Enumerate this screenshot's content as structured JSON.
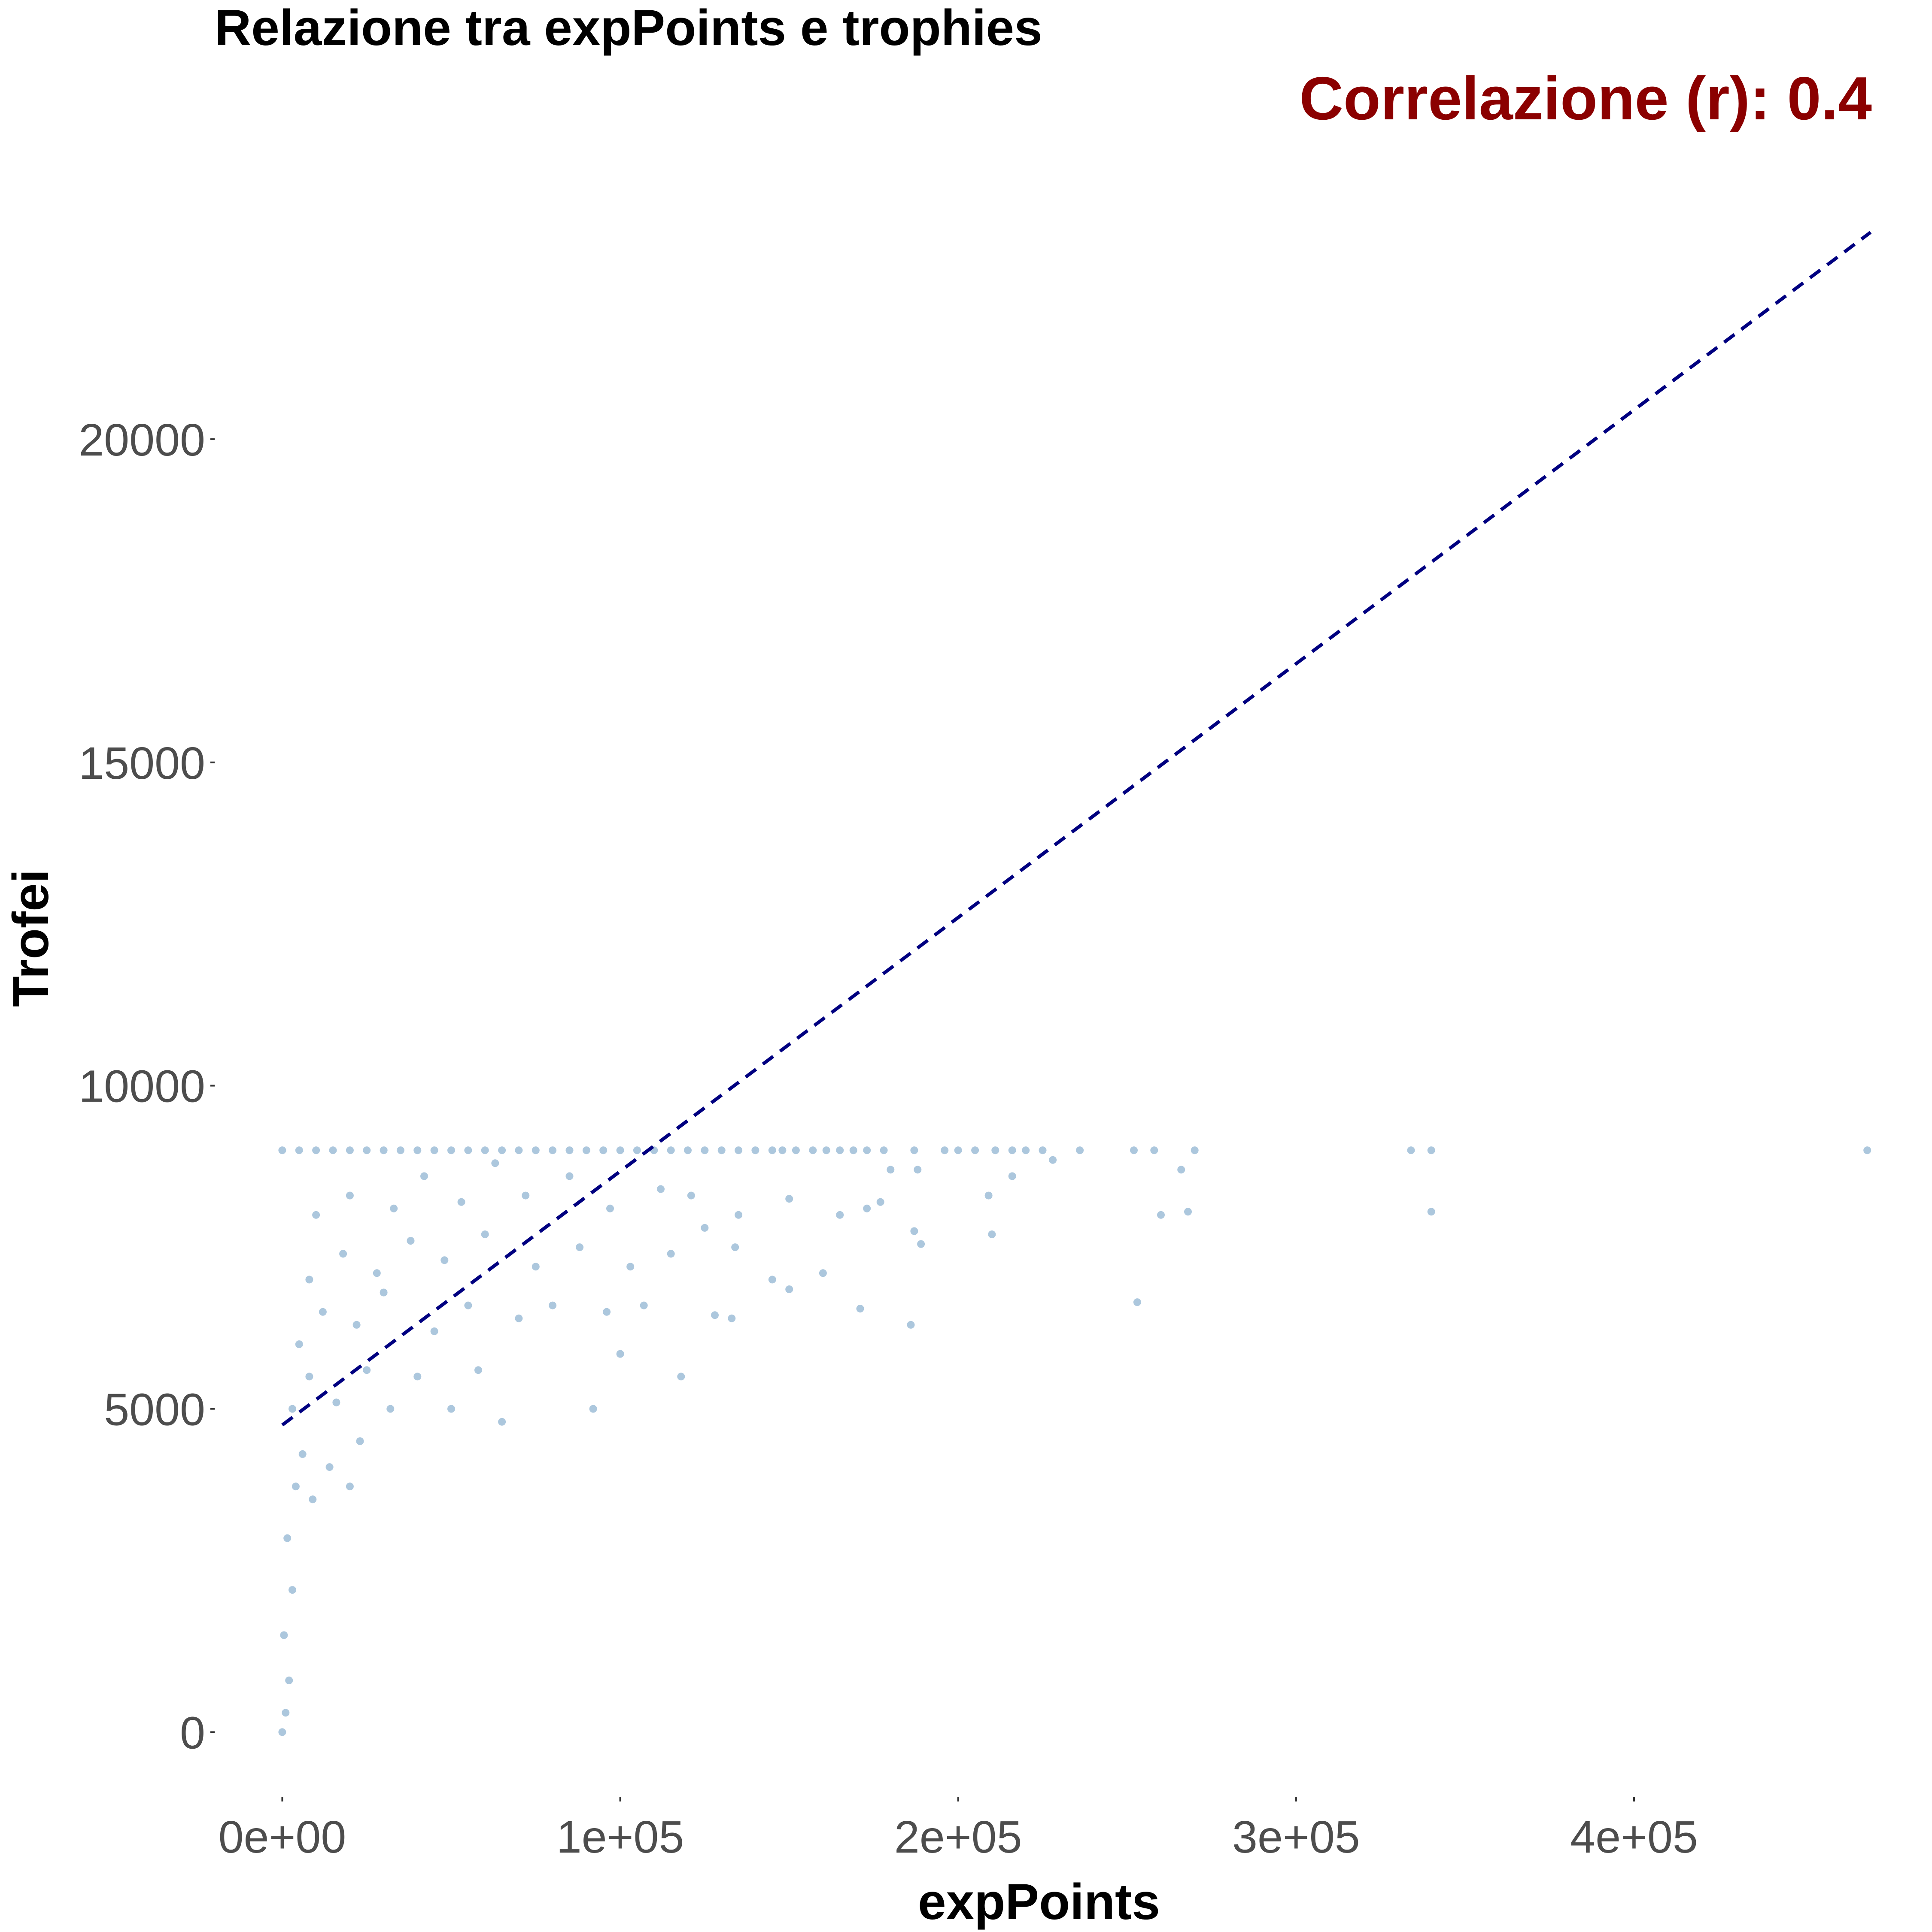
{
  "chart_data": {
    "type": "scatter",
    "title": "Relazione tra expPoints e trophies",
    "annotation": "Correlazione (r): 0.4",
    "xlabel": "expPoints",
    "ylabel": "Trofei",
    "xlim": [
      -20000,
      478000
    ],
    "ylim": [
      -1000,
      25000
    ],
    "x_ticks": [
      {
        "value": 0,
        "label": "0e+00"
      },
      {
        "value": 100000,
        "label": "1e+05"
      },
      {
        "value": 200000,
        "label": "2e+05"
      },
      {
        "value": 300000,
        "label": "3e+05"
      },
      {
        "value": 400000,
        "label": "4e+05"
      }
    ],
    "y_ticks": [
      {
        "value": 0,
        "label": "0"
      },
      {
        "value": 5000,
        "label": "5000"
      },
      {
        "value": 10000,
        "label": "10000"
      },
      {
        "value": 15000,
        "label": "15000"
      },
      {
        "value": 20000,
        "label": "20000"
      }
    ],
    "grid": false,
    "regression_line": {
      "x": [
        0,
        470000
      ],
      "y": [
        4750,
        23200
      ],
      "style": "dashed"
    },
    "series": [
      {
        "points": [
          [
            0,
            9000
          ],
          [
            5000,
            9000
          ],
          [
            10000,
            9000
          ],
          [
            15000,
            9000
          ],
          [
            20000,
            9000
          ],
          [
            25000,
            9000
          ],
          [
            30000,
            9000
          ],
          [
            35000,
            9000
          ],
          [
            40000,
            9000
          ],
          [
            45000,
            9000
          ],
          [
            50000,
            9000
          ],
          [
            55000,
            9000
          ],
          [
            60000,
            9000
          ],
          [
            65000,
            9000
          ],
          [
            70000,
            9000
          ],
          [
            75000,
            9000
          ],
          [
            80000,
            9000
          ],
          [
            85000,
            9000
          ],
          [
            90000,
            9000
          ],
          [
            95000,
            9000
          ],
          [
            100000,
            9000
          ],
          [
            105000,
            9000
          ],
          [
            110000,
            9000
          ],
          [
            115000,
            9000
          ],
          [
            120000,
            9000
          ],
          [
            125000,
            9000
          ],
          [
            130000,
            9000
          ],
          [
            135000,
            9000
          ],
          [
            140000,
            9000
          ],
          [
            145000,
            9000
          ],
          [
            148000,
            9000
          ],
          [
            152000,
            9000
          ],
          [
            157000,
            9000
          ],
          [
            161000,
            9000
          ],
          [
            165000,
            9000
          ],
          [
            169000,
            9000
          ],
          [
            173000,
            9000
          ],
          [
            178000,
            9000
          ],
          [
            187000,
            9000
          ],
          [
            196000,
            9000
          ],
          [
            200000,
            9000
          ],
          [
            205000,
            9000
          ],
          [
            211000,
            9000
          ],
          [
            216000,
            9000
          ],
          [
            220000,
            9000
          ],
          [
            225000,
            9000
          ],
          [
            236000,
            9000
          ],
          [
            252000,
            9000
          ],
          [
            258000,
            9000
          ],
          [
            270000,
            9000
          ],
          [
            334000,
            9000
          ],
          [
            340000,
            9000
          ],
          [
            469000,
            9000
          ],
          [
            0,
            0
          ],
          [
            1000,
            300
          ],
          [
            2000,
            800
          ],
          [
            500,
            1500
          ],
          [
            3000,
            2200
          ],
          [
            1500,
            3000
          ],
          [
            4000,
            3800
          ],
          [
            6000,
            4300
          ],
          [
            9000,
            3600
          ],
          [
            14000,
            4100
          ],
          [
            20000,
            3800
          ],
          [
            23000,
            4500
          ],
          [
            3000,
            5000
          ],
          [
            8000,
            5500
          ],
          [
            16000,
            5100
          ],
          [
            25000,
            5600
          ],
          [
            32000,
            5000
          ],
          [
            40000,
            5500
          ],
          [
            50000,
            5000
          ],
          [
            58000,
            5600
          ],
          [
            65000,
            4800
          ],
          [
            92000,
            5000
          ],
          [
            100000,
            5850
          ],
          [
            118000,
            5500
          ],
          [
            5000,
            6000
          ],
          [
            12000,
            6500
          ],
          [
            22000,
            6300
          ],
          [
            30000,
            6800
          ],
          [
            45000,
            6200
          ],
          [
            55000,
            6600
          ],
          [
            70000,
            6400
          ],
          [
            80000,
            6600
          ],
          [
            96000,
            6500
          ],
          [
            107000,
            6600
          ],
          [
            128000,
            6450
          ],
          [
            133000,
            6400
          ],
          [
            150000,
            6850
          ],
          [
            171000,
            6550
          ],
          [
            186000,
            6300
          ],
          [
            253000,
            6650
          ],
          [
            8000,
            7000
          ],
          [
            18000,
            7400
          ],
          [
            28000,
            7100
          ],
          [
            38000,
            7600
          ],
          [
            48000,
            7300
          ],
          [
            60000,
            7700
          ],
          [
            75000,
            7200
          ],
          [
            88000,
            7500
          ],
          [
            103000,
            7200
          ],
          [
            115000,
            7400
          ],
          [
            125000,
            7800
          ],
          [
            134000,
            7500
          ],
          [
            145000,
            7000
          ],
          [
            160000,
            7100
          ],
          [
            187000,
            7750
          ],
          [
            189000,
            7550
          ],
          [
            210000,
            7700
          ],
          [
            10000,
            8000
          ],
          [
            20000,
            8300
          ],
          [
            33000,
            8100
          ],
          [
            42000,
            8600
          ],
          [
            53000,
            8200
          ],
          [
            63000,
            8800
          ],
          [
            72000,
            8300
          ],
          [
            85000,
            8600
          ],
          [
            97000,
            8100
          ],
          [
            112000,
            8400
          ],
          [
            121000,
            8300
          ],
          [
            135000,
            8000
          ],
          [
            150000,
            8250
          ],
          [
            165000,
            8000
          ],
          [
            173000,
            8100
          ],
          [
            177000,
            8200
          ],
          [
            180000,
            8700
          ],
          [
            188000,
            8700
          ],
          [
            209000,
            8300
          ],
          [
            216000,
            8600
          ],
          [
            228000,
            8850
          ],
          [
            260000,
            8000
          ],
          [
            268000,
            8050
          ],
          [
            266000,
            8700
          ],
          [
            340000,
            8050
          ]
        ]
      }
    ],
    "colors": {
      "points": "#4682b4",
      "line": "#000080",
      "annotation": "#8b0000"
    }
  }
}
